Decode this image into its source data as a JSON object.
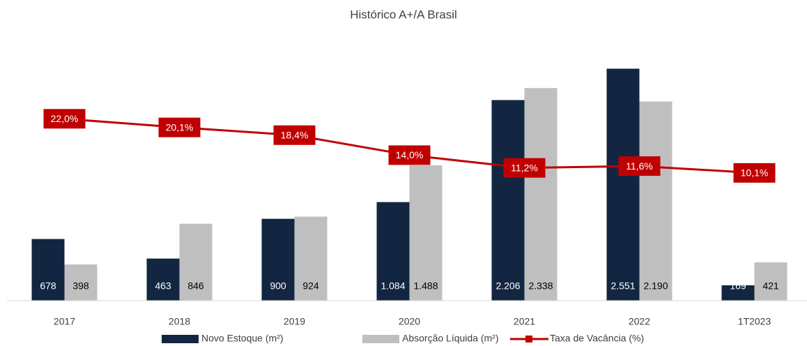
{
  "chart_data": {
    "type": "bar-line",
    "title": "Histórico A+/A Brasil",
    "categories": [
      "2017",
      "2018",
      "2019",
      "2020",
      "2021",
      "2022",
      "1T2023"
    ],
    "ylim": [
      0,
      2800
    ],
    "y2lim": [
      -18,
      38
    ],
    "series": [
      {
        "name": "Novo Estoque (m²)",
        "color": "#132641",
        "type": "bar",
        "values": [
          678,
          463,
          900,
          1084,
          2206,
          2551,
          169
        ],
        "value_labels": [
          "678",
          "463",
          "900",
          "1.084",
          "2.206",
          "2.551",
          "169"
        ]
      },
      {
        "name": "Absorção Líquida (m²)",
        "color": "#bfbfbf",
        "type": "bar",
        "values": [
          398,
          846,
          924,
          1488,
          2338,
          2190,
          421
        ],
        "value_labels": [
          "398",
          "846",
          "924",
          "1.488",
          "2.338",
          "2.190",
          "421"
        ]
      },
      {
        "name": "Taxa de Vacância (%)",
        "color": "#c00000",
        "type": "line",
        "axis": "y2",
        "values": [
          22.0,
          20.1,
          18.4,
          14.0,
          11.2,
          11.6,
          10.1
        ],
        "value_labels": [
          "22,0%",
          "20,1%",
          "18,4%",
          "14,0%",
          "11,2%",
          "11,6%",
          "10,1%"
        ]
      }
    ]
  }
}
